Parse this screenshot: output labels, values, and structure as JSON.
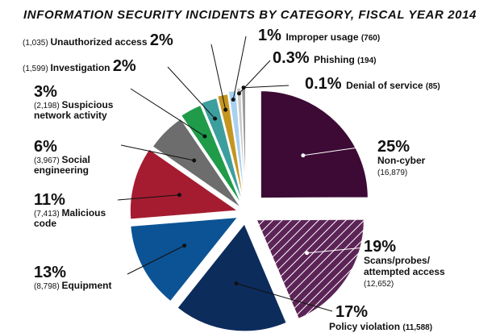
{
  "chart_data": {
    "type": "pie",
    "title": "INFORMATION SECURITY INCIDENTS BY CATEGORY, FISCAL YEAR 2014",
    "slices": [
      {
        "pct": "25%",
        "label": "Non-cyber",
        "count": "(16,879)",
        "value": 16879,
        "color": "#3c0a35"
      },
      {
        "pct": "19%",
        "label": "Scans/probes/ attempted access",
        "label_lines": [
          "Scans/probes/",
          "attempted access"
        ],
        "count": "(12,652)",
        "value": 12652,
        "color": "#5c2456",
        "pattern": "hatched"
      },
      {
        "pct": "17%",
        "label": "Policy violation",
        "count": "(11,588)",
        "value": 11588,
        "color": "#0c2c5c"
      },
      {
        "pct": "13%",
        "label": "Equipment",
        "count": "(8,798)",
        "value": 8798,
        "color": "#0b5394"
      },
      {
        "pct": "11%",
        "label": "Malicious code",
        "label_lines": [
          "Malicious",
          "code"
        ],
        "count": "(7,413)",
        "value": 7413,
        "color": "#a51c30"
      },
      {
        "pct": "6%",
        "label": "Social engineering",
        "label_lines": [
          "Social",
          "engineering"
        ],
        "count": "(3,967)",
        "value": 3967,
        "color": "#6d6d6d"
      },
      {
        "pct": "3%",
        "label": "Suspicious network activity",
        "label_lines": [
          "Suspicious",
          "network activity"
        ],
        "count": "(2,198)",
        "value": 2198,
        "color": "#1f9b4a"
      },
      {
        "pct": "2%",
        "label": "Investigation",
        "count": "(1,599)",
        "value": 1599,
        "color": "#3d9e9e"
      },
      {
        "pct": "2%",
        "label": "Unauthorized access",
        "count": "(1,035)",
        "value": 1035,
        "color": "#c49520"
      },
      {
        "pct": "1%",
        "label": "Improper usage",
        "count": "(760)",
        "value": 760,
        "color": "#a8d0f0"
      },
      {
        "pct": "0.3%",
        "label": "Phishing",
        "count": "(194)",
        "value": 194,
        "color": "#c8c8c8"
      },
      {
        "pct": "0.1%",
        "label": "Denial of service",
        "count": "(85)",
        "value": 85,
        "color": "#999999"
      }
    ]
  }
}
